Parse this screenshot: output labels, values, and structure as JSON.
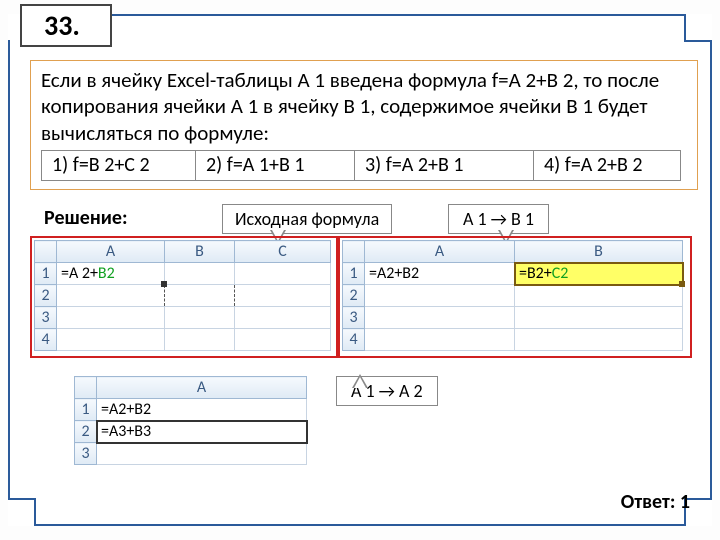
{
  "question_number": "33.",
  "question_text": "Если в ячейку Excel-таблицы A 1 введена формула f=A 2+B 2, то после копирования ячейки A 1 в ячейку B 1, содержимое ячейки B 1 будет вычисляться по формуле:",
  "options": {
    "o1": "1) f=B 2+C 2",
    "o2": "2) f=A 1+B 1",
    "o3": "3) f=A 2+B 1",
    "o4": "4) f=A 2+B 2"
  },
  "labels": {
    "solution": "Решение:",
    "callout_source": "Исходная формула",
    "callout_b1": "A 1 → B 1",
    "callout_a2": "A 1 → A 2",
    "answer": "Ответ: 1"
  },
  "table1": {
    "cols": [
      "A",
      "B",
      "C"
    ],
    "rows": [
      "1",
      "2",
      "3",
      "4"
    ],
    "a1_part1": "=A 2+",
    "a1_part2": "B2"
  },
  "table2": {
    "cols": [
      "A",
      "B"
    ],
    "rows": [
      "1",
      "2",
      "3",
      "4"
    ],
    "a1": "=A2+B2",
    "b1_part1": "=B2+",
    "b1_part2": "C2"
  },
  "table3": {
    "col": "A",
    "rows": [
      "1",
      "2",
      "3"
    ],
    "r1": "=A2+B2",
    "r2": "=A3+B3"
  },
  "colors": {
    "frame": "#2a5a9a",
    "question_border": "#e0a050",
    "redbox": "#d02020",
    "header_top": "#f5f9fd",
    "header_bot": "#dfeaf5",
    "header_border": "#9fb8d3",
    "cell_border": "#c8d4e2",
    "highlight": "#ffff66"
  }
}
